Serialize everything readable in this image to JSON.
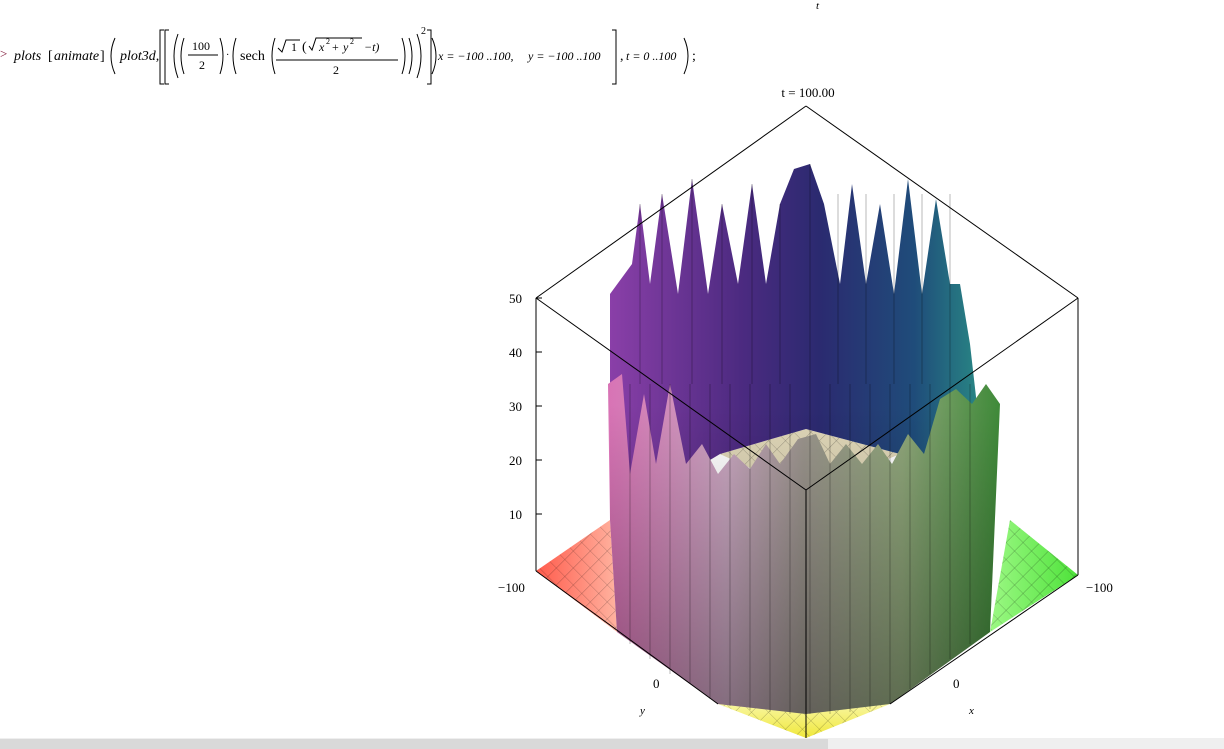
{
  "header": {
    "top_variable": "t"
  },
  "command": {
    "prompt": ">",
    "func_plots": "plots",
    "func_animate": "animate",
    "func_plot3d": "plot3d,",
    "num": "100",
    "den": "2",
    "sech": "sech",
    "sqrt_one": "1",
    "x_sq": "x",
    "y_sq": "y",
    "exp2": "2",
    "minus_t": "−t)",
    "half_den": "2",
    "outer_exp": "2",
    "x_range": "x = −100 ..100,",
    "y_range": "y = −100 ..100",
    "t_range": "t = 0 ..100",
    "terminator": ";"
  },
  "plot": {
    "frame_label": "t = 100.00",
    "z_ticks": [
      "50",
      "40",
      "30",
      "20",
      "10"
    ],
    "left_axis_min": "−100",
    "right_axis_min": "−100",
    "y_axis_zero": "0",
    "x_axis_zero": "0",
    "y_axis_label": "y",
    "x_axis_label": "x"
  },
  "colors": {
    "prompt": "#7a0b2e",
    "floor_left": "#ff5b4c",
    "floor_right": "#63f34a",
    "floor_bottom": "#f7f24a"
  }
}
